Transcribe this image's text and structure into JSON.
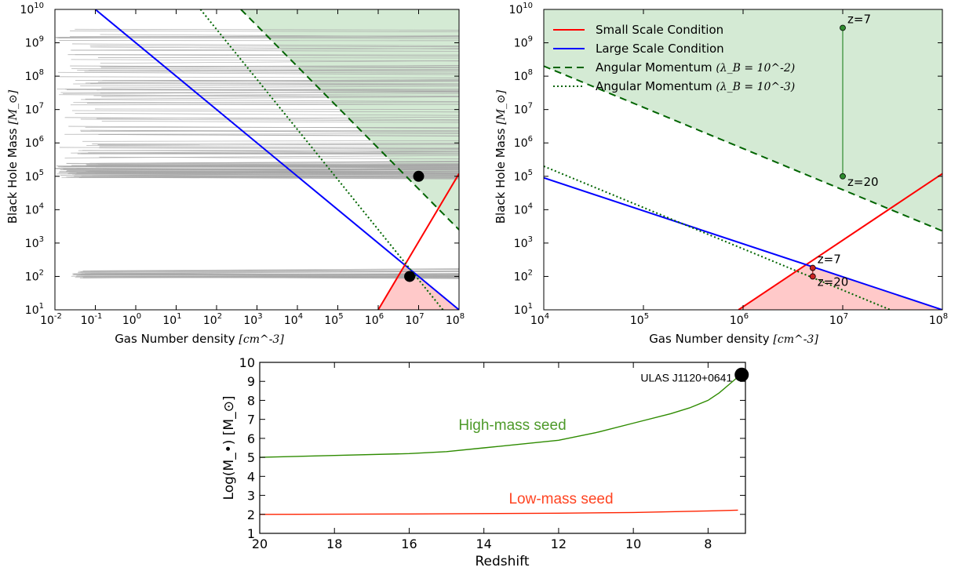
{
  "chart_data": [
    {
      "type": "line",
      "panel": "top-left",
      "xlabel": "Gas Number density",
      "xunit": "[cm^-3]",
      "ylabel": "Black Hole Mass",
      "yunit": "[M_⊙]",
      "xscale": "log",
      "yscale": "log",
      "xlim": [
        0.01,
        100000000
      ],
      "ylim": [
        10,
        10000000000
      ],
      "xtick_exponents": [
        -2,
        -1,
        0,
        1,
        2,
        3,
        4,
        5,
        6,
        7,
        8
      ],
      "ytick_exponents": [
        1,
        2,
        3,
        4,
        5,
        6,
        7,
        8,
        9,
        10
      ],
      "grid": false,
      "colors": {
        "small_scale": "#ff0000",
        "large_scale": "#0000ff",
        "angular_momentum": "#006400",
        "tracks": "#a9a9a9",
        "shade_green": "#cfe8cf",
        "shade_red": "#ffc9c9"
      },
      "series": [
        {
          "style": "solid",
          "color": "#0000ff",
          "x": [
            0.1,
            100000000
          ],
          "y": [
            10000000000,
            10
          ]
        },
        {
          "style": "solid",
          "color": "#ff0000",
          "x": [
            1000000,
            100000000
          ],
          "y": [
            10,
            120000
          ]
        },
        {
          "style": "dashed",
          "color": "#006400",
          "x": [
            400,
            100000000
          ],
          "y": [
            10000000000,
            2500
          ]
        },
        {
          "style": "dotted",
          "color": "#006400",
          "x": [
            40,
            40000000
          ],
          "y": [
            10000000000,
            10
          ]
        }
      ],
      "points": [
        {
          "x": 10000000,
          "y": 100000
        },
        {
          "x": 6000000,
          "y": 100
        }
      ],
      "gray_track_bands": [
        {
          "y_from": 90000,
          "y_to": 3000000000
        },
        {
          "y_from": 90,
          "y_to": 150
        }
      ]
    },
    {
      "type": "line",
      "panel": "top-right",
      "xlabel": "Gas Number density",
      "xunit": "[cm^-3]",
      "ylabel": "Black Hole Mass",
      "yunit": "[M_⊙]",
      "xscale": "log",
      "yscale": "log",
      "xlim": [
        10000,
        100000000
      ],
      "ylim": [
        10,
        10000000000
      ],
      "xtick_exponents": [
        4,
        5,
        6,
        7,
        8
      ],
      "ytick_exponents": [
        1,
        2,
        3,
        4,
        5,
        6,
        7,
        8,
        9,
        10
      ],
      "grid": false,
      "legend": {
        "location": "upper-left",
        "entries": [
          {
            "label": "Small Scale Condition",
            "style": "solid",
            "color": "#ff0000"
          },
          {
            "label": "Large Scale Condition",
            "style": "solid",
            "color": "#0000ff"
          },
          {
            "label": "Angular Momentum",
            "math": "(λ_B = 10^-2)",
            "style": "dashed",
            "color": "#006400"
          },
          {
            "label": "Angular Momentum",
            "math": "(λ_B = 10^-3)",
            "style": "dotted",
            "color": "#006400"
          }
        ]
      },
      "series": [
        {
          "name": "Small Scale Condition",
          "style": "solid",
          "color": "#ff0000",
          "x": [
            900000,
            100000000
          ],
          "y": [
            10,
            120000
          ]
        },
        {
          "name": "Large Scale Condition",
          "style": "solid",
          "color": "#0000ff",
          "x": [
            10000,
            100000000
          ],
          "y": [
            90000,
            10
          ]
        },
        {
          "style": "dashed",
          "color": "#006400",
          "x": [
            10000,
            100000000
          ],
          "y": [
            200000000,
            2300
          ]
        },
        {
          "style": "dotted",
          "color": "#006400",
          "x": [
            10000,
            30000000
          ],
          "y": [
            200000,
            10
          ]
        }
      ],
      "annotations": [
        {
          "text": "z=7",
          "x": 10000000,
          "y": 2800000000
        },
        {
          "text": "z=20",
          "x": 10000000,
          "y": 100000
        },
        {
          "text": "z=7",
          "x": 5000000,
          "y": 180
        },
        {
          "text": "z=20",
          "x": 5000000,
          "y": 100
        }
      ]
    },
    {
      "type": "line",
      "panel": "bottom",
      "xlabel": "Redshift",
      "ylabel": "Log(M_•) [M_⊙]",
      "xlim": [
        20,
        7
      ],
      "ylim": [
        1,
        10
      ],
      "xticks": [
        20,
        18,
        16,
        14,
        12,
        10,
        8
      ],
      "yticks": [
        1,
        2,
        3,
        4,
        5,
        6,
        7,
        8,
        9,
        10
      ],
      "grid": false,
      "series": [
        {
          "name": "High-mass seed",
          "color": "#2e8b00",
          "x": [
            20,
            18,
            16,
            15,
            14,
            13,
            12,
            11,
            10,
            9,
            8.5,
            8,
            7.7,
            7.4,
            7.1
          ],
          "y": [
            5.0,
            5.1,
            5.2,
            5.3,
            5.5,
            5.7,
            5.9,
            6.3,
            6.8,
            7.3,
            7.6,
            8.0,
            8.4,
            8.9,
            9.4
          ]
        },
        {
          "name": "Low-mass seed",
          "color": "#ff2200",
          "x": [
            20,
            16,
            12,
            10,
            8,
            7.2
          ],
          "y": [
            2.0,
            2.02,
            2.06,
            2.1,
            2.18,
            2.22
          ]
        }
      ],
      "points": [
        {
          "label": "ULAS J1120+0641",
          "x": 7.1,
          "y": 9.35
        }
      ],
      "series_labels": [
        "High-mass seed",
        "Low-mass seed"
      ],
      "series_label_colors": [
        "#4e9a2a",
        "#ff4422"
      ]
    }
  ]
}
